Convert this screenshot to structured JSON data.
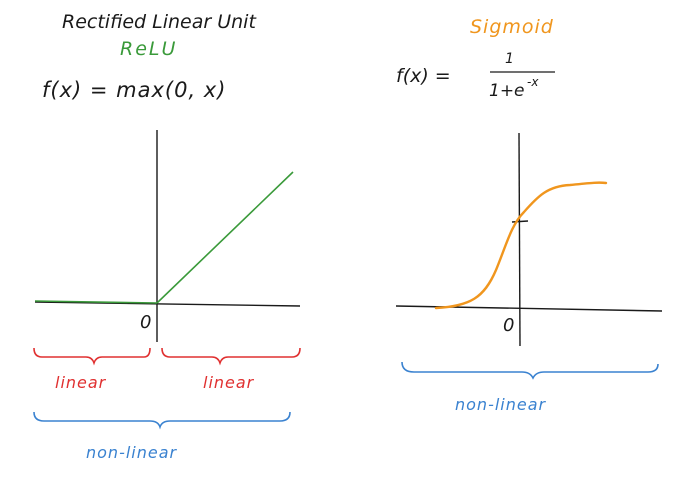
{
  "colors": {
    "ink": "#1a1a1a",
    "relu_green": "#3a9a3a",
    "sigmoid_orange": "#f0961e",
    "linear_red": "#e03030",
    "nonlinear_blue": "#3a82d0"
  },
  "relu": {
    "title": "Rectified Linear Unit",
    "name": "ReLU",
    "formula": "f(x) = max(0, x)",
    "origin_label": "0",
    "left_brace_label": "linear",
    "right_brace_label": "linear",
    "bottom_brace_label": "non-linear"
  },
  "sigmoid": {
    "name": "Sigmoid",
    "formula_lhs": "f(x) =",
    "formula_numerator": "1",
    "formula_denominator_base": "1+e",
    "formula_denominator_exp": "-x",
    "origin_label": "0",
    "brace_label": "non-linear"
  }
}
